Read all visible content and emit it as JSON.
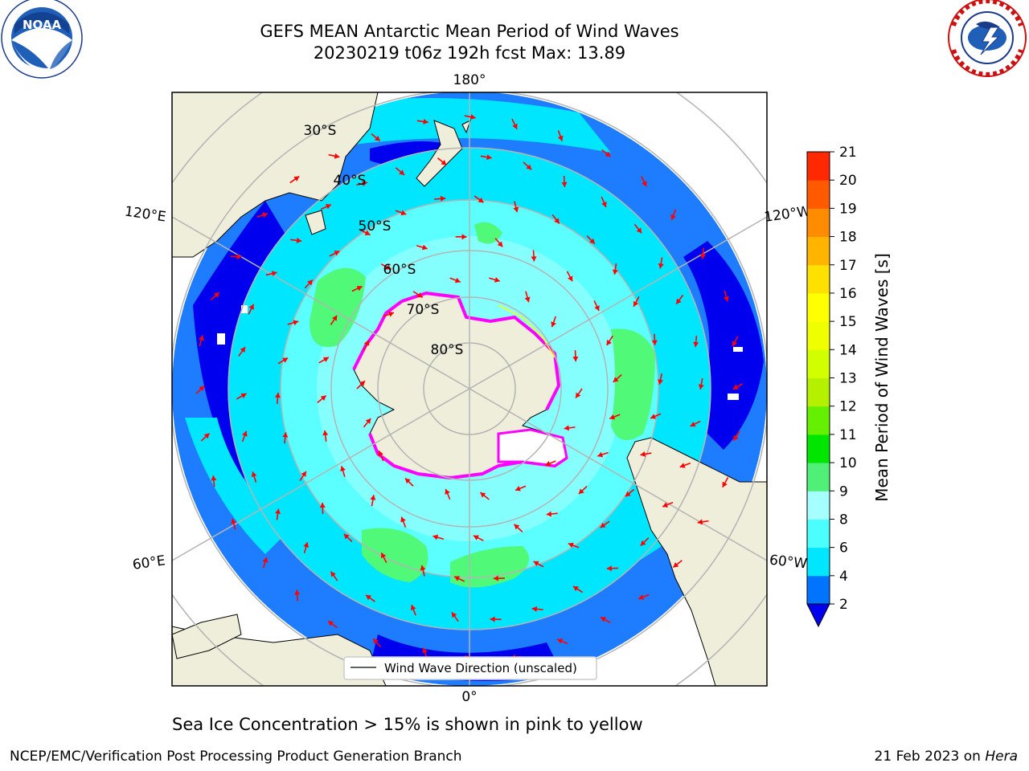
{
  "title": {
    "line1": "GEFS MEAN Antarctic Mean Period of Wind Waves",
    "line2": "20230219 t06z 192h fcst   Max: 13.89"
  },
  "logos": {
    "left": {
      "name": "noaa-logo",
      "text": "NOAA",
      "ring_text": "NATIONAL OCEANIC AND ATMOSPHERIC ADMINISTRATION · U.S. DEPARTMENT OF COMMERCE"
    },
    "right": {
      "name": "nws-logo",
      "ring_text": "NATIONAL WEATHER SERVICE"
    }
  },
  "map": {
    "projection": "south-polar-stereographic",
    "longitude_labels": [
      "180°",
      "120°E",
      "120°W",
      "60°E",
      "60°W",
      "0°"
    ],
    "latitude_labels": [
      "30°S",
      "40°S",
      "50°S",
      "60°S",
      "70°S",
      "80°S"
    ],
    "legend": "Wind Wave Direction (unscaled)",
    "colors": {
      "land": "#efeedb",
      "ocean_outer": "#ffffff",
      "period_2_4": "#0000ee",
      "period_4_6": "#1e7dff",
      "period_6_8": "#00e6ff",
      "period_8_9": "#5cffff",
      "period_9_10": "#a9ffff",
      "period_10_11": "#50fa78",
      "arrow": "#ff0000",
      "sea_ice": "#ff00ff",
      "grid": "#b4b4b4"
    }
  },
  "colorbar": {
    "label": "Mean Period of Wind Waves [s]",
    "ticks": [
      "2",
      "4",
      "6",
      "8",
      "9",
      "10",
      "11",
      "12",
      "13",
      "14",
      "15",
      "16",
      "17",
      "18",
      "19",
      "20",
      "21"
    ],
    "colors": [
      "#0073ff",
      "#00e6ff",
      "#4cffff",
      "#a6ffff",
      "#50f078",
      "#00e600",
      "#64f000",
      "#b4f000",
      "#d2ff00",
      "#f0ff00",
      "#ffff00",
      "#ffe100",
      "#ffb400",
      "#ff8c00",
      "#ff5a00",
      "#ff2800",
      "#ff0000"
    ],
    "under_color": "#0000ee"
  },
  "caption": "Sea Ice Concentration > 15% is shown in pink to yellow",
  "footer": {
    "left": "NCEP/EMC/Verification Post Processing Product Generation Branch",
    "right_date": "21 Feb 2023 on ",
    "right_host": "Hera"
  }
}
